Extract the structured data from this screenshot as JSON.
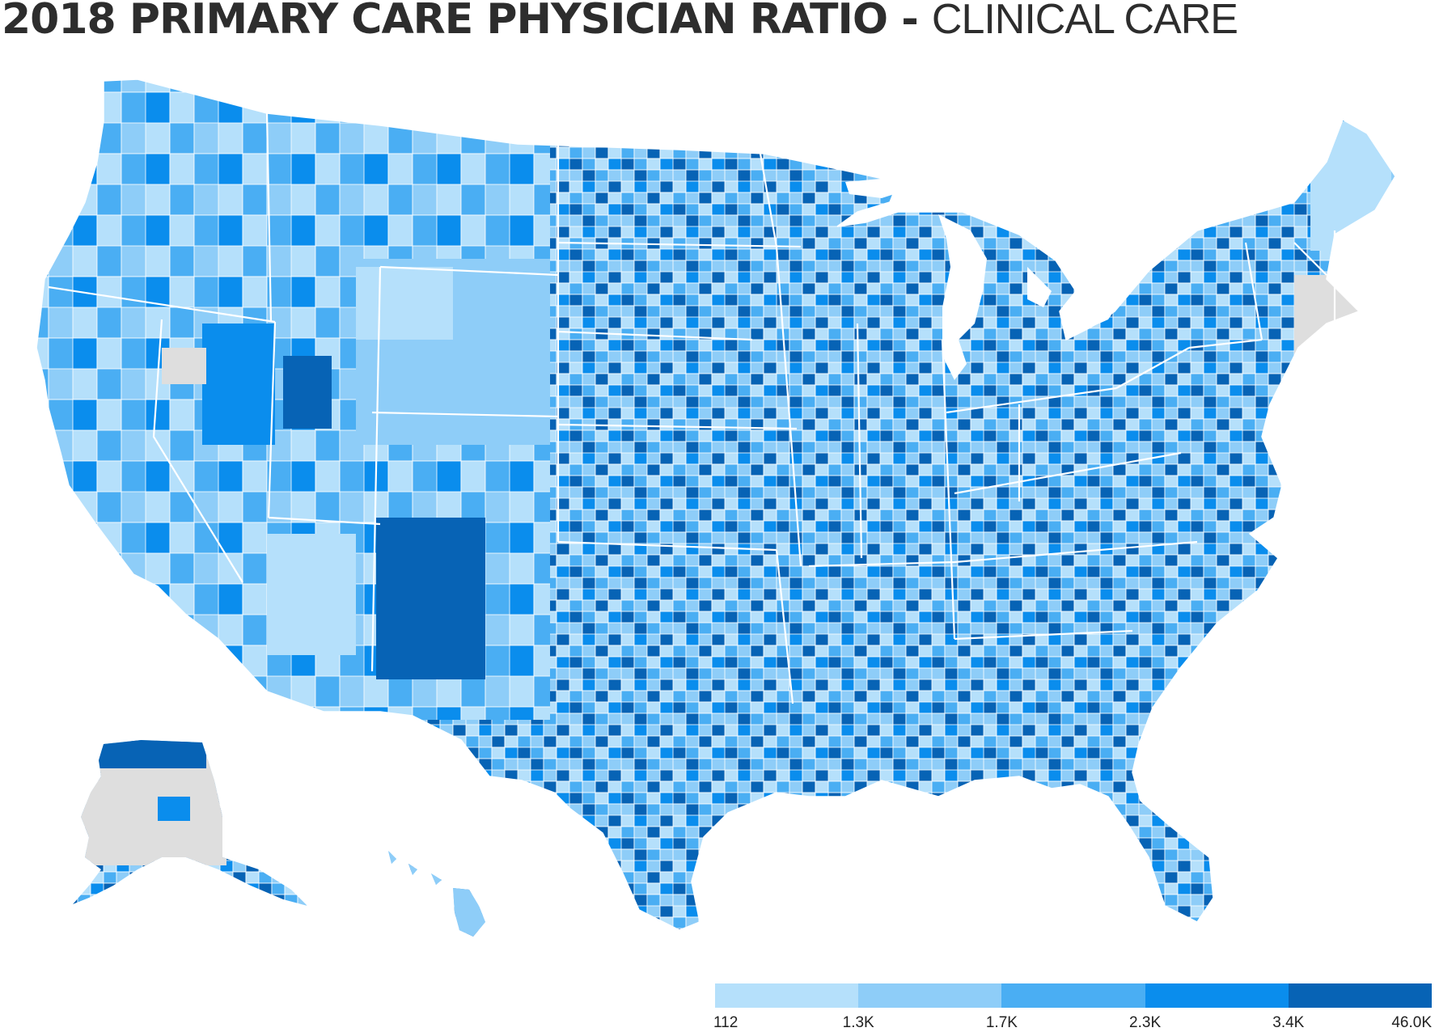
{
  "header": {
    "title_bold": "2018 PRIMARY CARE PHYSICIAN RATIO",
    "title_separator": " - ",
    "title_light": "CLINICAL CARE"
  },
  "map_data": {
    "type": "choropleth",
    "geography": "US counties",
    "no_data_color": "#dedede",
    "background_color": "#ffffff",
    "palette": [
      "#b5e0fb",
      "#8ecdf8",
      "#4aaef3",
      "#0a8ded",
      "#0763b5"
    ],
    "legend": {
      "ticks": [
        "112",
        "1.3K",
        "1.7K",
        "2.3K",
        "3.4K",
        "46.0K"
      ],
      "bins": [
        {
          "min": "112",
          "max": "1.3K",
          "color": "#b5e0fb"
        },
        {
          "min": "1.3K",
          "max": "1.7K",
          "color": "#8ecdf8"
        },
        {
          "min": "1.7K",
          "max": "2.3K",
          "color": "#4aaef3"
        },
        {
          "min": "2.3K",
          "max": "3.4K",
          "color": "#0a8ded"
        },
        {
          "min": "3.4K",
          "max": "46.0K",
          "color": "#0763b5"
        }
      ]
    }
  }
}
